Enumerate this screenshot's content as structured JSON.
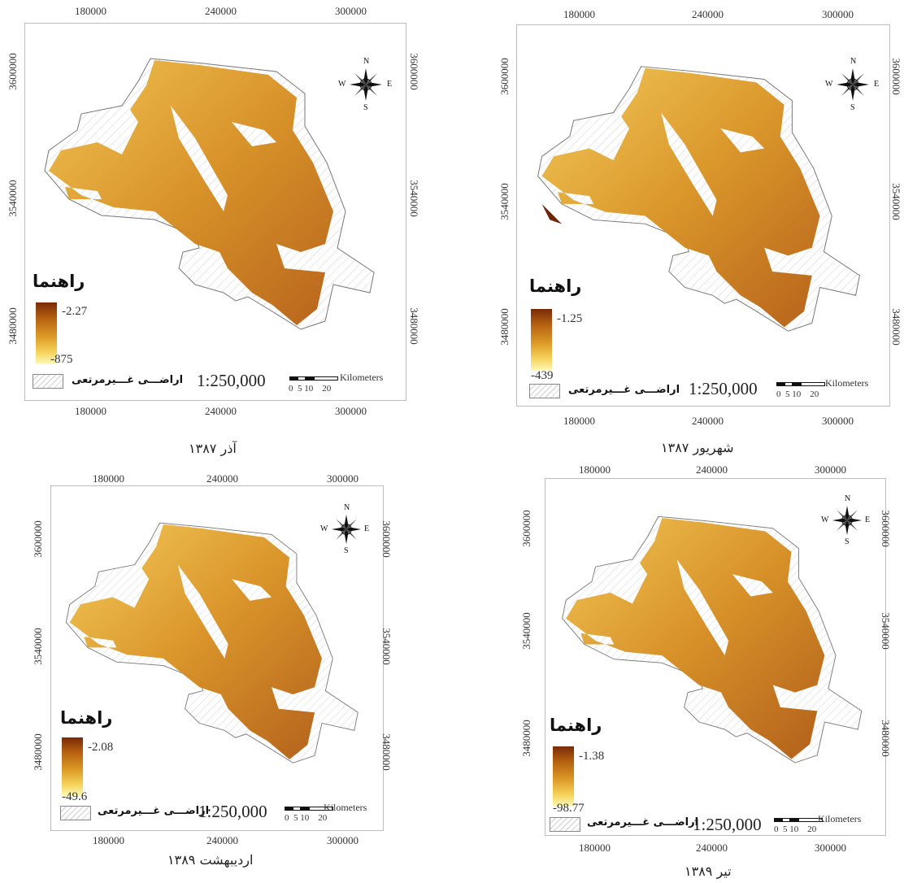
{
  "maps": [
    {
      "id": "azar-1387",
      "caption": "آذر ۱۳۸۷",
      "x_ticks": [
        "180000",
        "240000",
        "300000"
      ],
      "y_ticks": [
        "3600000",
        "3540000",
        "3480000"
      ],
      "legend_title": "راهنما",
      "legend_max": "-2.27",
      "legend_min": "-875",
      "nonrange_label": "اراضـــی غـــیرمرتعی",
      "scale": "1:250,000",
      "scalebar_labels": "0  5 10    20",
      "scalebar_units": "Kilometers",
      "compass": {
        "n": "N",
        "s": "S",
        "e": "E",
        "w": "W"
      }
    },
    {
      "id": "shahrivar-1387",
      "caption": "شهریور ۱۳۸۷",
      "x_ticks": [
        "180000",
        "240000",
        "300000"
      ],
      "y_ticks": [
        "3600000",
        "3540000",
        "3480000"
      ],
      "legend_title": "راهنما",
      "legend_max": "-1.25",
      "legend_min": "-439",
      "nonrange_label": "اراضـــی غـــیرمرتعی",
      "scale": "1:250,000",
      "scalebar_labels": "0  5 10    20",
      "scalebar_units": "Kilometers",
      "compass": {
        "n": "N",
        "s": "S",
        "e": "E",
        "w": "W"
      }
    },
    {
      "id": "ordibehesht-1389",
      "caption": "اردیبهشت ۱۳۸۹",
      "x_ticks": [
        "180000",
        "240000",
        "300000"
      ],
      "y_ticks": [
        "3600000",
        "3540000",
        "3480000"
      ],
      "legend_title": "راهنما",
      "legend_max": "-2.08",
      "legend_min": "-49.6",
      "nonrange_label": "اراضـــی غـــیرمرتعی",
      "scale": "1:250,000",
      "scalebar_labels": "0  5 10    20",
      "scalebar_units": "Kilometers",
      "compass": {
        "n": "N",
        "s": "S",
        "e": "E",
        "w": "W"
      }
    },
    {
      "id": "tir-1389",
      "caption": "تیر ۱۳۸۹",
      "x_ticks": [
        "180000",
        "240000",
        "300000"
      ],
      "y_ticks": [
        "3600000",
        "3540000",
        "3480000"
      ],
      "legend_title": "راهنما",
      "legend_max": "-1.38",
      "legend_min": "-98.77",
      "nonrange_label": "اراضـــی غـــیرمرتعی",
      "scale": "1:250,000",
      "scalebar_labels": "0  5 10    20",
      "scalebar_units": "Kilometers",
      "compass": {
        "n": "N",
        "s": "S",
        "e": "E",
        "w": "W"
      }
    }
  ],
  "colors": {
    "ramp_high": "#7a2a08",
    "ramp_mid": "#dc9a26",
    "ramp_low": "#fff9b8",
    "frame": "#bdbdbd"
  }
}
